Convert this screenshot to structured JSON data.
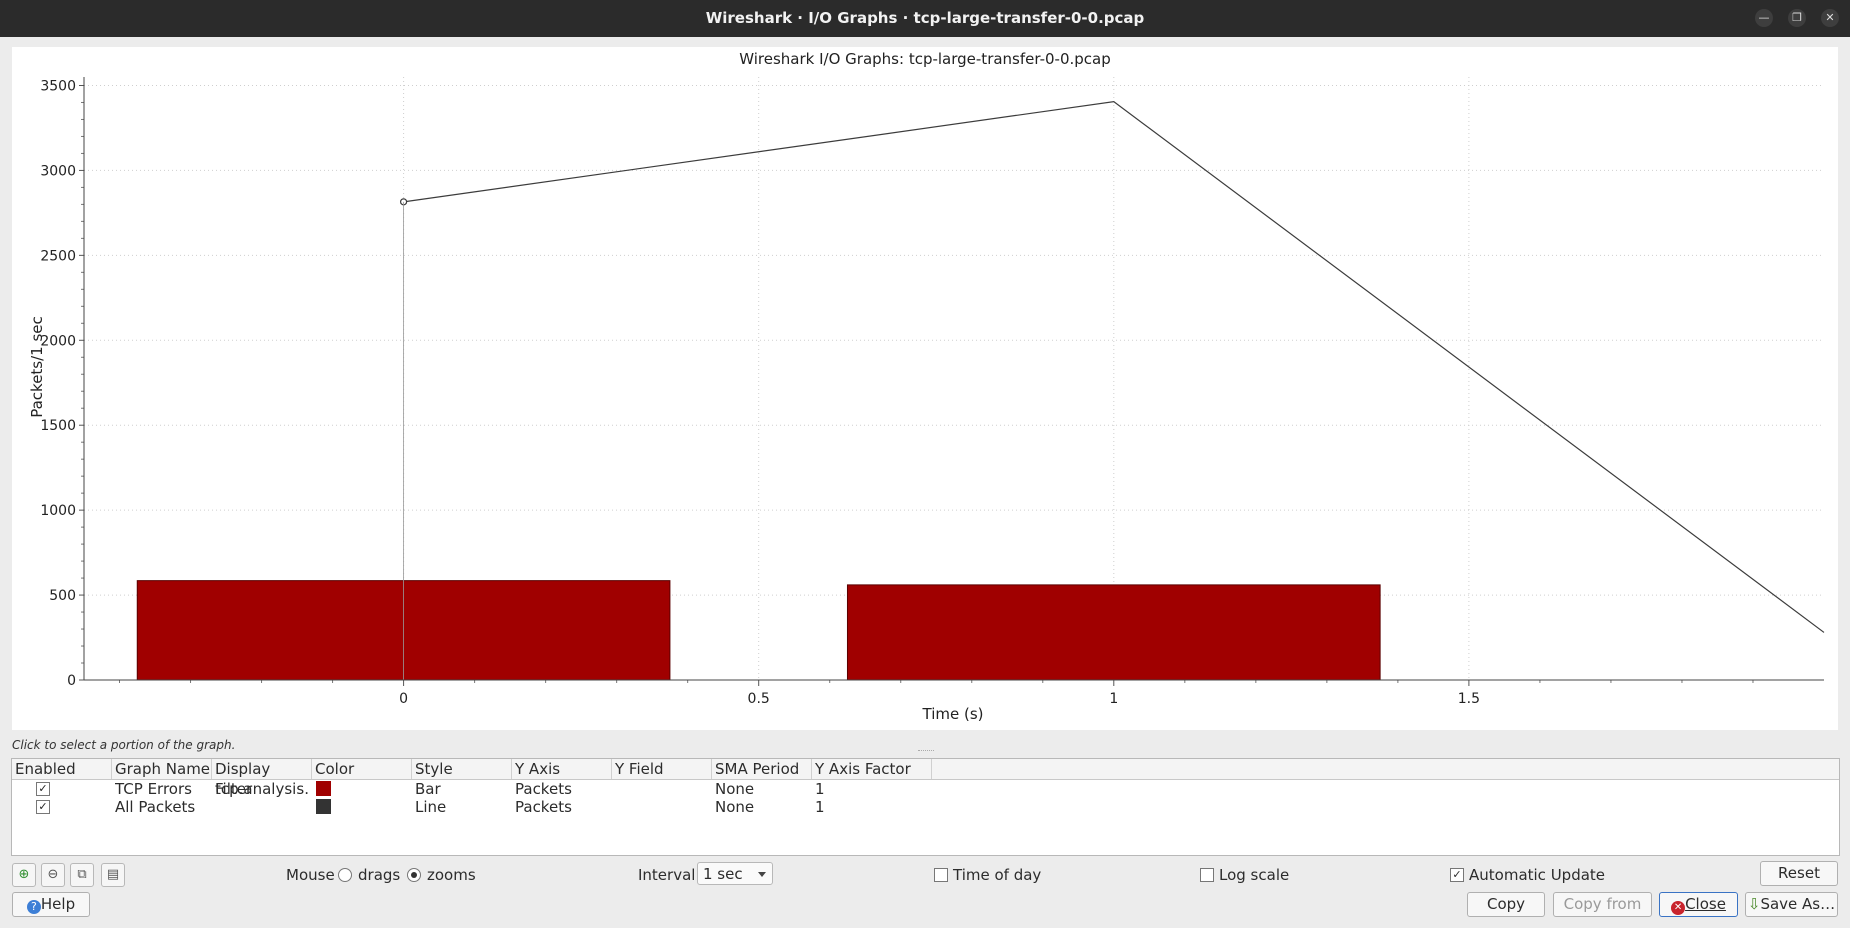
{
  "window": {
    "title": "Wireshark · I/O Graphs · tcp-large-transfer-0-0.pcap"
  },
  "chart_data": {
    "type": "bar",
    "title": "Wireshark I/O Graphs: tcp-large-transfer-0-0.pcap",
    "xlabel": "Time (s)",
    "ylabel": "Packets/1 sec",
    "x_ticks": [
      "0",
      "0.5",
      "1",
      "1.5"
    ],
    "y_ticks": [
      "0",
      "500",
      "1000",
      "1500",
      "2000",
      "2500",
      "3000",
      "3500"
    ],
    "xlim": [
      -0.45,
      2.0
    ],
    "ylim": [
      0,
      3550
    ],
    "grid": true,
    "series": [
      {
        "name": "TCP Errors",
        "type": "bar",
        "color": "#a00000",
        "x": [
          0,
          1
        ],
        "values": [
          585,
          560
        ],
        "bar_width": 0.75
      },
      {
        "name": "All Packets",
        "type": "line",
        "color": "#3c3c3c",
        "x": [
          0,
          1,
          2
        ],
        "values": [
          2815,
          3405,
          280
        ]
      }
    ]
  },
  "hint": "Click to select a portion of the graph.",
  "table": {
    "headers": [
      "Enabled",
      "Graph Name",
      "Display Filter",
      "Color",
      "Style",
      "Y Axis",
      "Y Field",
      "SMA Period",
      "Y Axis Factor"
    ],
    "rows": [
      {
        "enabled": "✓",
        "name": "TCP Errors",
        "filter": "tcp.analysis…",
        "color": "#a00000",
        "style": "Bar",
        "yaxis": "Packets",
        "yfield": "",
        "sma": "None",
        "factor": "1"
      },
      {
        "enabled": "✓",
        "name": "All Packets",
        "filter": "",
        "color": "#333333",
        "style": "Line",
        "yaxis": "Packets",
        "yfield": "",
        "sma": "None",
        "factor": "1"
      }
    ]
  },
  "controls": {
    "mouse_label": "Mouse",
    "drags_label": "drags",
    "zooms_label": "zooms",
    "interval_label": "Interval",
    "interval_value": "1 sec",
    "time_of_day_label": "Time of day",
    "log_scale_label": "Log scale",
    "auto_update_label": "Automatic Update",
    "auto_update_check": "✓",
    "reset_label": "Reset"
  },
  "buttons": {
    "help": "Help",
    "copy": "Copy",
    "copy_from": "Copy from",
    "close": "Close",
    "save_as": "Save As…"
  },
  "icons": {
    "add": "add-graph-icon",
    "remove": "remove-graph-icon",
    "duplicate": "duplicate-graph-icon",
    "clear": "clear-graphs-icon"
  }
}
